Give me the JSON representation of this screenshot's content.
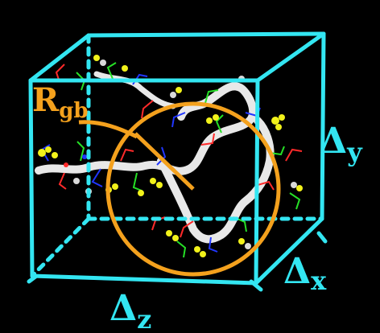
{
  "colors": {
    "box": "#33E6F2",
    "circle": "#F4A11D",
    "rgb_text": "#F4A11D",
    "delta_text": "#33E6F2",
    "background": "#000000",
    "polymer_backbone": "#e8e8e8",
    "polymer_side_yellow": "#f2f21a",
    "polymer_side_blue": "#2036ff",
    "polymer_side_red": "#ff2a2a",
    "polymer_side_green": "#26e026",
    "polymer_side_white": "#d9d9d9"
  },
  "labels": {
    "rgb_main": "R",
    "rgb_sub": "gb",
    "delta_y_symbol": "Δ",
    "delta_y_sub": "y",
    "delta_x_symbol": "Δ",
    "delta_x_sub": "x",
    "delta_z_symbol": "Δ",
    "delta_z_sub": "z"
  }
}
